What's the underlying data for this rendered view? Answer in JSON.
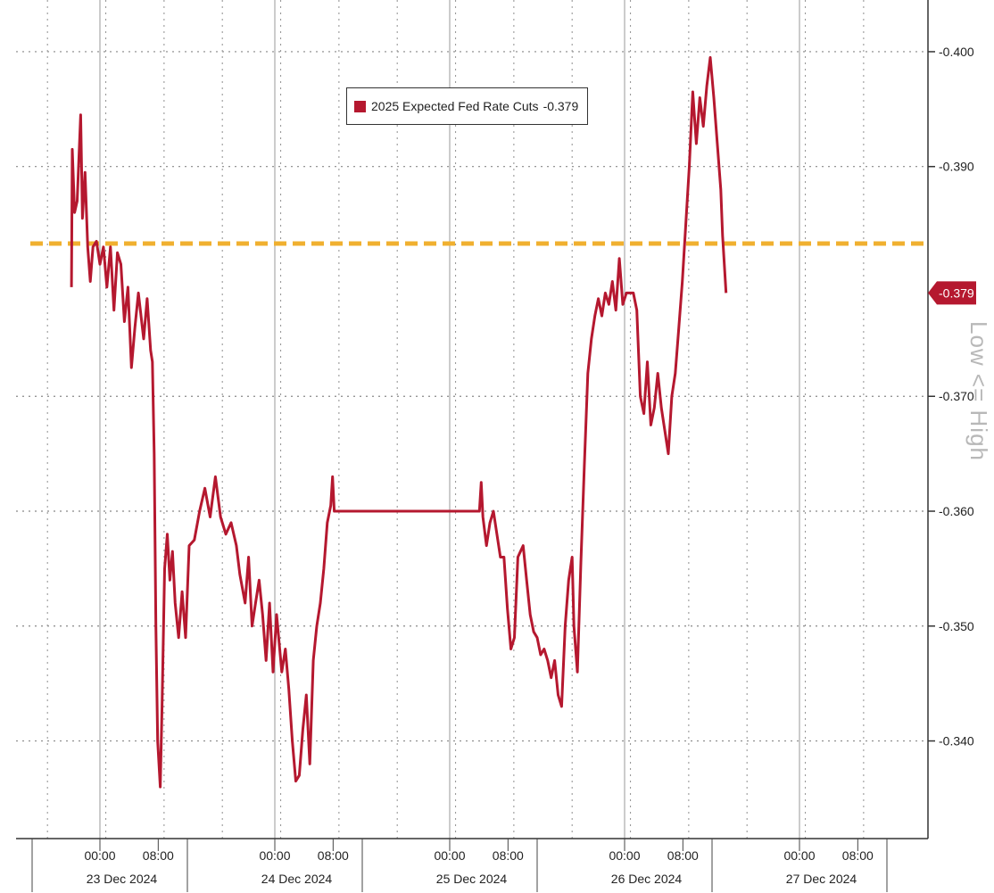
{
  "chart_data": {
    "type": "line",
    "legend": {
      "label": "2025 Expected Fed Rate Cuts",
      "value": "-0.379",
      "placement": "top-center"
    },
    "y_ticks": [
      "-0.400",
      "-0.390",
      "-0.370",
      "-0.360",
      "-0.350",
      "-0.340"
    ],
    "y_tick_values": [
      -0.4,
      -0.39,
      -0.37,
      -0.36,
      -0.35,
      -0.34
    ],
    "ylim": [
      -0.3315,
      -0.4045
    ],
    "y_axis_side": "right",
    "y_direction": "more negative values at top",
    "last_value_label": "-0.379",
    "time_labels": [
      {
        "label": "00:00",
        "day": 0,
        "hour": 0
      },
      {
        "label": "08:00",
        "day": 0,
        "hour": 8
      },
      {
        "label": "00:00",
        "day": 1,
        "hour": 0
      },
      {
        "label": "08:00",
        "day": 1,
        "hour": 8
      },
      {
        "label": "00:00",
        "day": 2,
        "hour": 0
      },
      {
        "label": "08:00",
        "day": 2,
        "hour": 8
      },
      {
        "label": "00:00",
        "day": 3,
        "hour": 0
      },
      {
        "label": "08:00",
        "day": 3,
        "hour": 8
      },
      {
        "label": "00:00",
        "day": 4,
        "hour": 0
      },
      {
        "label": "08:00",
        "day": 4,
        "hour": 8
      }
    ],
    "date_labels": [
      "23 Dec 2024",
      "24 Dec 2024",
      "25 Dec 2024",
      "26 Dec 2024",
      "27 Dec 2024"
    ],
    "reference_line": {
      "value": -0.3833,
      "color": "#f0b030",
      "style": "dashed"
    },
    "grid": true,
    "series": [
      {
        "name": "2025 Expected Fed Rate Cuts",
        "color": "#b5182f",
        "points": [
          [
            -0.163,
            -0.3795
          ],
          [
            -0.158,
            -0.3915
          ],
          [
            -0.145,
            -0.386
          ],
          [
            -0.13,
            -0.387
          ],
          [
            -0.11,
            -0.3945
          ],
          [
            -0.1,
            -0.3855
          ],
          [
            -0.085,
            -0.3895
          ],
          [
            -0.07,
            -0.383
          ],
          [
            -0.055,
            -0.38
          ],
          [
            -0.04,
            -0.383
          ],
          [
            -0.02,
            -0.3835
          ],
          [
            0.0,
            -0.3815
          ],
          [
            0.02,
            -0.383
          ],
          [
            0.04,
            -0.3795
          ],
          [
            0.06,
            -0.383
          ],
          [
            0.08,
            -0.3775
          ],
          [
            0.1,
            -0.3825
          ],
          [
            0.12,
            -0.3815
          ],
          [
            0.14,
            -0.3765
          ],
          [
            0.16,
            -0.3795
          ],
          [
            0.18,
            -0.3725
          ],
          [
            0.2,
            -0.376
          ],
          [
            0.22,
            -0.379
          ],
          [
            0.25,
            -0.375
          ],
          [
            0.27,
            -0.3785
          ],
          [
            0.29,
            -0.374
          ],
          [
            0.3,
            -0.373
          ],
          [
            0.31,
            -0.365
          ],
          [
            0.32,
            -0.35
          ],
          [
            0.33,
            -0.34
          ],
          [
            0.345,
            -0.336
          ],
          [
            0.355,
            -0.343
          ],
          [
            0.37,
            -0.355
          ],
          [
            0.385,
            -0.358
          ],
          [
            0.4,
            -0.354
          ],
          [
            0.415,
            -0.3565
          ],
          [
            0.43,
            -0.352
          ],
          [
            0.45,
            -0.349
          ],
          [
            0.47,
            -0.353
          ],
          [
            0.49,
            -0.349
          ],
          [
            0.51,
            -0.357
          ],
          [
            0.54,
            -0.3575
          ],
          [
            0.57,
            -0.36
          ],
          [
            0.6,
            -0.362
          ],
          [
            0.63,
            -0.3595
          ],
          [
            0.66,
            -0.363
          ],
          [
            0.69,
            -0.3595
          ],
          [
            0.72,
            -0.358
          ],
          [
            0.75,
            -0.359
          ],
          [
            0.78,
            -0.357
          ],
          [
            0.8,
            -0.3545
          ],
          [
            0.83,
            -0.352
          ],
          [
            0.85,
            -0.356
          ],
          [
            0.87,
            -0.35
          ],
          [
            0.89,
            -0.352
          ],
          [
            0.91,
            -0.354
          ],
          [
            0.93,
            -0.351
          ],
          [
            0.95,
            -0.347
          ],
          [
            0.97,
            -0.352
          ],
          [
            0.99,
            -0.346
          ],
          [
            1.01,
            -0.351
          ],
          [
            1.04,
            -0.346
          ],
          [
            1.06,
            -0.348
          ],
          [
            1.08,
            -0.3445
          ],
          [
            1.1,
            -0.34
          ],
          [
            1.12,
            -0.3365
          ],
          [
            1.14,
            -0.337
          ],
          [
            1.16,
            -0.341
          ],
          [
            1.18,
            -0.344
          ],
          [
            1.2,
            -0.338
          ],
          [
            1.22,
            -0.347
          ],
          [
            1.24,
            -0.35
          ],
          [
            1.26,
            -0.352
          ],
          [
            1.28,
            -0.355
          ],
          [
            1.3,
            -0.359
          ],
          [
            1.32,
            -0.3605
          ],
          [
            1.33,
            -0.363
          ],
          [
            1.34,
            -0.36
          ],
          [
            2.17,
            -0.36
          ],
          [
            2.18,
            -0.3625
          ],
          [
            2.19,
            -0.3595
          ],
          [
            2.21,
            -0.357
          ],
          [
            2.23,
            -0.359
          ],
          [
            2.25,
            -0.36
          ],
          [
            2.27,
            -0.358
          ],
          [
            2.29,
            -0.356
          ],
          [
            2.31,
            -0.356
          ],
          [
            2.33,
            -0.3515
          ],
          [
            2.35,
            -0.348
          ],
          [
            2.37,
            -0.349
          ],
          [
            2.39,
            -0.356
          ],
          [
            2.42,
            -0.357
          ],
          [
            2.44,
            -0.354
          ],
          [
            2.46,
            -0.351
          ],
          [
            2.48,
            -0.3495
          ],
          [
            2.5,
            -0.349
          ],
          [
            2.52,
            -0.3475
          ],
          [
            2.54,
            -0.348
          ],
          [
            2.56,
            -0.347
          ],
          [
            2.58,
            -0.3455
          ],
          [
            2.6,
            -0.347
          ],
          [
            2.62,
            -0.344
          ],
          [
            2.64,
            -0.343
          ],
          [
            2.66,
            -0.35
          ],
          [
            2.68,
            -0.354
          ],
          [
            2.7,
            -0.356
          ],
          [
            2.71,
            -0.35
          ],
          [
            2.73,
            -0.346
          ],
          [
            2.75,
            -0.3555
          ],
          [
            2.77,
            -0.364
          ],
          [
            2.79,
            -0.372
          ],
          [
            2.81,
            -0.375
          ],
          [
            2.83,
            -0.377
          ],
          [
            2.85,
            -0.3785
          ],
          [
            2.87,
            -0.377
          ],
          [
            2.89,
            -0.379
          ],
          [
            2.91,
            -0.378
          ],
          [
            2.93,
            -0.38
          ],
          [
            2.95,
            -0.3775
          ],
          [
            2.97,
            -0.382
          ],
          [
            2.99,
            -0.378
          ],
          [
            3.01,
            -0.379
          ],
          [
            3.03,
            -0.379
          ],
          [
            3.05,
            -0.379
          ],
          [
            3.07,
            -0.3775
          ],
          [
            3.09,
            -0.37
          ],
          [
            3.11,
            -0.3685
          ],
          [
            3.13,
            -0.373
          ],
          [
            3.15,
            -0.3675
          ],
          [
            3.17,
            -0.369
          ],
          [
            3.19,
            -0.372
          ],
          [
            3.21,
            -0.369
          ],
          [
            3.23,
            -0.367
          ],
          [
            3.25,
            -0.365
          ],
          [
            3.27,
            -0.37
          ],
          [
            3.29,
            -0.372
          ],
          [
            3.31,
            -0.376
          ],
          [
            3.33,
            -0.38
          ],
          [
            3.35,
            -0.385
          ],
          [
            3.37,
            -0.39
          ],
          [
            3.39,
            -0.3965
          ],
          [
            3.41,
            -0.392
          ],
          [
            3.43,
            -0.396
          ],
          [
            3.45,
            -0.3935
          ],
          [
            3.47,
            -0.397
          ],
          [
            3.49,
            -0.3995
          ],
          [
            3.51,
            -0.396
          ],
          [
            3.53,
            -0.392
          ],
          [
            3.55,
            -0.388
          ],
          [
            3.56,
            -0.384
          ],
          [
            3.58,
            -0.379
          ]
        ]
      }
    ]
  },
  "side_label": "Low <= High"
}
